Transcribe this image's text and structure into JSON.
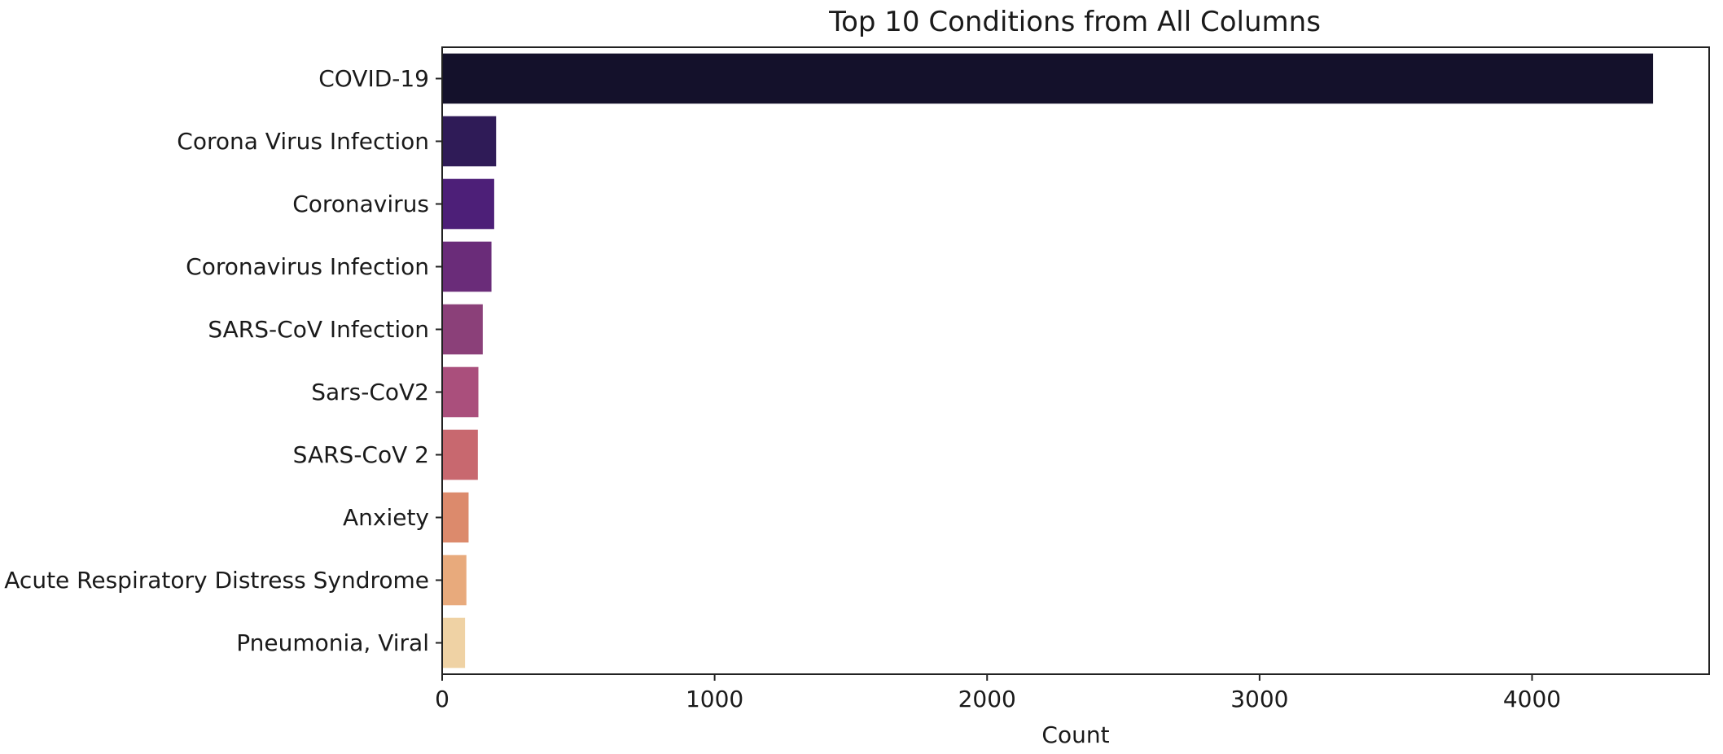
{
  "chart_data": {
    "type": "bar",
    "orientation": "horizontal",
    "title": "Top 10 Conditions from All Columns",
    "xlabel": "Count",
    "ylabel": "",
    "xlim": [
      0,
      4650
    ],
    "x_ticks": [
      "0",
      "1000",
      "2000",
      "3000",
      "4000"
    ],
    "grid": false,
    "categories": [
      "COVID-19",
      "Corona Virus Infection",
      "Coronavirus",
      "Coronavirus Infection",
      "SARS-CoV Infection",
      "Sars-CoV2",
      "SARS-CoV 2",
      "Anxiety",
      "Acute Respiratory Distress Syndrome",
      "Pneumonia, Viral"
    ],
    "values": [
      4444,
      198,
      191,
      181,
      149,
      133,
      131,
      97,
      89,
      84
    ],
    "colors": [
      "#14112b",
      "#2f1b57",
      "#4d1f78",
      "#6a2c79",
      "#8b4079",
      "#aa4f7c",
      "#c8686f",
      "#dc8a6c",
      "#e8aa7c",
      "#efd2a4"
    ]
  }
}
